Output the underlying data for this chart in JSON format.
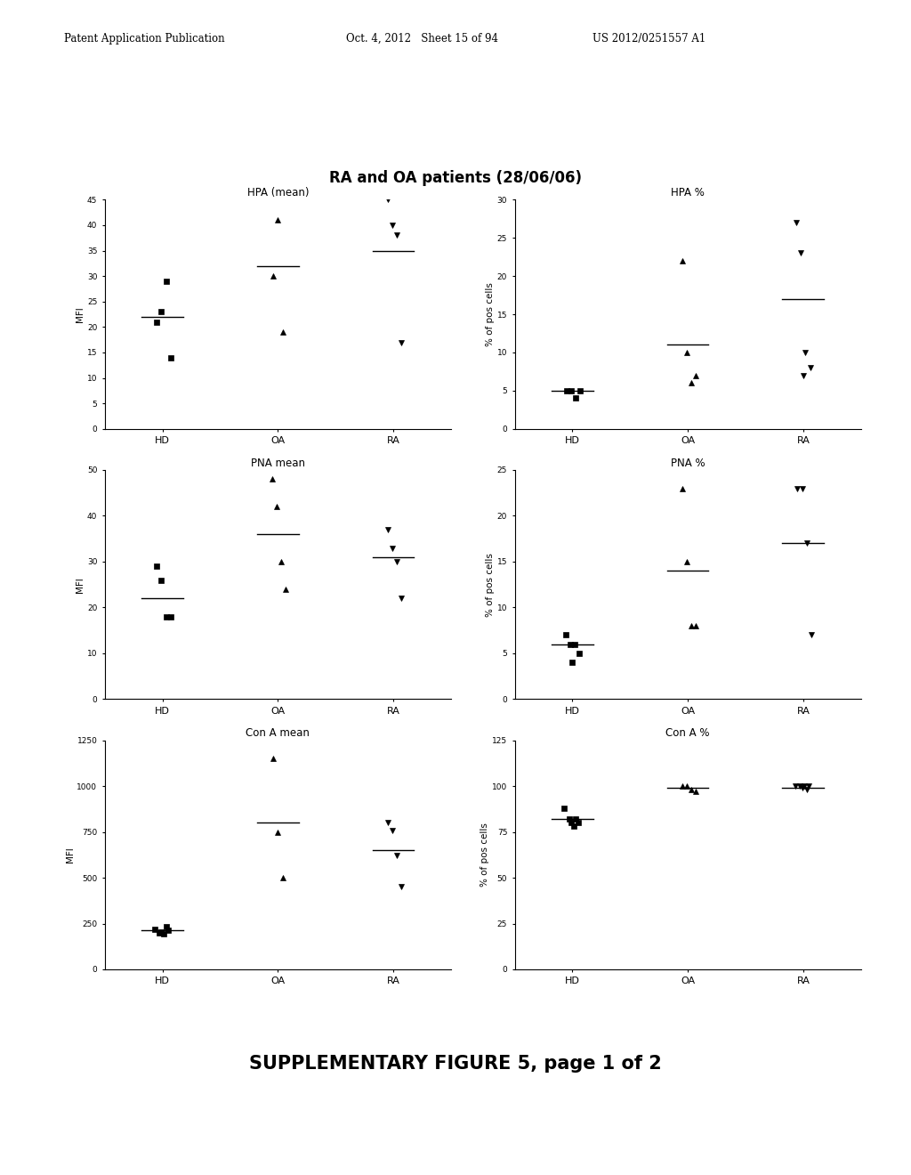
{
  "title": "RA and OA patients (28/06/06)",
  "footer": "SUPPLEMENTARY FIGURE 5, page 1 of 2",
  "header_left": "Patent Application Publication",
  "header_mid": "Oct. 4, 2012   Sheet 15 of 94",
  "header_right": "US 2012/0251557 A1",
  "plots": [
    {
      "title": "HPA (mean)",
      "ylabel": "MFI",
      "ylim": [
        0,
        45
      ],
      "yticks": [
        0,
        5,
        10,
        15,
        20,
        25,
        30,
        35,
        40,
        45
      ],
      "groups": [
        "HD",
        "OA",
        "RA"
      ],
      "square_points": {
        "HD": [
          21,
          23,
          29,
          14
        ],
        "OA": [],
        "RA": []
      },
      "triangle_up_points": {
        "HD": [],
        "OA": [
          30,
          41,
          19
        ],
        "RA": []
      },
      "triangle_down_points": {
        "HD": [],
        "OA": [],
        "RA": [
          45,
          40,
          38,
          17
        ]
      },
      "means": {
        "HD": 22,
        "OA": 32,
        "RA": 35
      }
    },
    {
      "title": "HPA %",
      "ylabel": "% of pos cells",
      "ylim": [
        0,
        30
      ],
      "yticks": [
        0,
        5,
        10,
        15,
        20,
        25,
        30
      ],
      "groups": [
        "HD",
        "OA",
        "RA"
      ],
      "square_points": {
        "HD": [
          5,
          5,
          4,
          5
        ],
        "OA": [],
        "RA": []
      },
      "triangle_up_points": {
        "HD": [],
        "OA": [
          22,
          10,
          6,
          7
        ],
        "RA": []
      },
      "triangle_down_points": {
        "HD": [],
        "OA": [],
        "RA": [
          27,
          23,
          10,
          8,
          7
        ]
      },
      "means": {
        "HD": 5,
        "OA": 11,
        "RA": 17
      }
    },
    {
      "title": "PNA mean",
      "ylabel": "MFI",
      "ylim": [
        0,
        50
      ],
      "yticks": [
        0,
        10,
        20,
        30,
        40,
        50
      ],
      "groups": [
        "HD",
        "OA",
        "RA"
      ],
      "square_points": {
        "HD": [
          29,
          26,
          18,
          18
        ],
        "OA": [],
        "RA": []
      },
      "triangle_up_points": {
        "HD": [],
        "OA": [
          48,
          42,
          30,
          24
        ],
        "RA": []
      },
      "triangle_down_points": {
        "HD": [],
        "OA": [],
        "RA": [
          37,
          33,
          30,
          22
        ]
      },
      "means": {
        "HD": 22,
        "OA": 36,
        "RA": 31
      }
    },
    {
      "title": "PNA %",
      "ylabel": "% of pos cells",
      "ylim": [
        0,
        25
      ],
      "yticks": [
        0,
        5,
        10,
        15,
        20,
        25
      ],
      "groups": [
        "HD",
        "OA",
        "RA"
      ],
      "square_points": {
        "HD": [
          7,
          6,
          6,
          5,
          4
        ],
        "OA": [],
        "RA": []
      },
      "triangle_up_points": {
        "HD": [],
        "OA": [
          23,
          15,
          8,
          8
        ],
        "RA": []
      },
      "triangle_down_points": {
        "HD": [],
        "OA": [],
        "RA": [
          23,
          23,
          17,
          7
        ]
      },
      "means": {
        "HD": 6,
        "OA": 14,
        "RA": 17
      }
    },
    {
      "title": "Con A mean",
      "ylabel": "MFI",
      "ylim": [
        0,
        1250
      ],
      "yticks": [
        0,
        250,
        500,
        750,
        1000,
        1250
      ],
      "groups": [
        "HD",
        "OA",
        "RA"
      ],
      "square_points": {
        "HD": [
          220,
          200,
          195,
          215,
          205,
          235
        ],
        "OA": [],
        "RA": []
      },
      "triangle_up_points": {
        "HD": [],
        "OA": [
          1150,
          750,
          500
        ],
        "RA": []
      },
      "triangle_down_points": {
        "HD": [],
        "OA": [],
        "RA": [
          800,
          760,
          620,
          450
        ]
      },
      "means": {
        "HD": 215,
        "OA": 800,
        "RA": 650
      }
    },
    {
      "title": "Con A %",
      "ylabel": "% of pos cells",
      "ylim": [
        0,
        125
      ],
      "yticks": [
        0,
        25,
        50,
        75,
        100,
        125
      ],
      "groups": [
        "HD",
        "OA",
        "RA"
      ],
      "square_points": {
        "HD": [
          88,
          82,
          78,
          80,
          80,
          82
        ],
        "OA": [],
        "RA": []
      },
      "triangle_up_points": {
        "HD": [],
        "OA": [
          100,
          100,
          98,
          97
        ],
        "RA": []
      },
      "triangle_down_points": {
        "HD": [],
        "OA": [],
        "RA": [
          100,
          100,
          100,
          100,
          99,
          98
        ]
      },
      "means": {
        "HD": 82,
        "OA": 99,
        "RA": 99
      }
    }
  ]
}
